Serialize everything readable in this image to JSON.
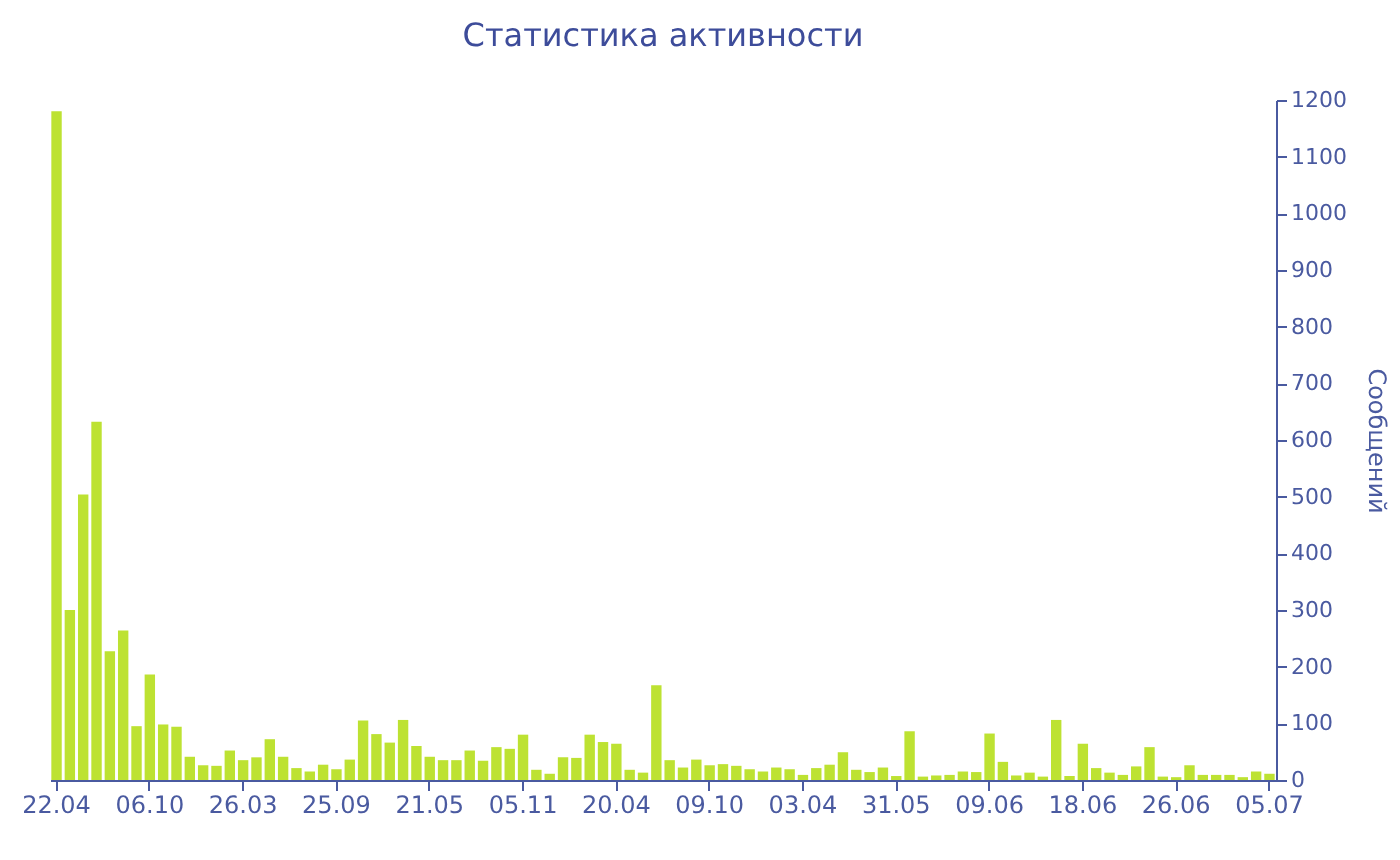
{
  "chart_data": {
    "type": "bar",
    "title": "Статистика активности",
    "ylabel": "Сообщений",
    "categories": [
      "22.04",
      null,
      null,
      null,
      null,
      null,
      null,
      "06.10",
      null,
      null,
      null,
      null,
      null,
      null,
      "26.03",
      null,
      null,
      null,
      null,
      null,
      null,
      "25.09",
      null,
      null,
      null,
      null,
      null,
      null,
      "21.05",
      null,
      null,
      null,
      null,
      null,
      null,
      "05.11",
      null,
      null,
      null,
      null,
      null,
      null,
      "20.04",
      null,
      null,
      null,
      null,
      null,
      null,
      "09.10",
      null,
      null,
      null,
      null,
      null,
      null,
      "03.04",
      null,
      null,
      null,
      null,
      null,
      null,
      "31.05",
      null,
      null,
      null,
      null,
      null,
      null,
      "09.06",
      null,
      null,
      null,
      null,
      null,
      null,
      "18.06",
      null,
      null,
      null,
      null,
      null,
      null,
      "26.06",
      null,
      null,
      null,
      null,
      null,
      null,
      "05.07"
    ],
    "values": [
      1180,
      300,
      504,
      632,
      227,
      264,
      95,
      186,
      98,
      94,
      41,
      26,
      25,
      52,
      35,
      40,
      72,
      41,
      21,
      15,
      27,
      19,
      36,
      105,
      81,
      66,
      106,
      60,
      41,
      35,
      35,
      52,
      34,
      58,
      55,
      80,
      18,
      11,
      40,
      39,
      80,
      67,
      64,
      18,
      13,
      167,
      35,
      22,
      36,
      26,
      28,
      25,
      19,
      15,
      22,
      19,
      9,
      21,
      27,
      49,
      18,
      14,
      22,
      7,
      86,
      6,
      8,
      9,
      15,
      14,
      82,
      32,
      8,
      13,
      6,
      106,
      7,
      64,
      21,
      13,
      9,
      24,
      58,
      6,
      5,
      26,
      9,
      9,
      9,
      5,
      15,
      11
    ],
    "color": "#bde232",
    "ylim": [
      0,
      1200
    ],
    "yticks": [
      0,
      100,
      200,
      300,
      400,
      500,
      600,
      700,
      800,
      900,
      1000,
      1100,
      1200
    ],
    "grid": false
  }
}
